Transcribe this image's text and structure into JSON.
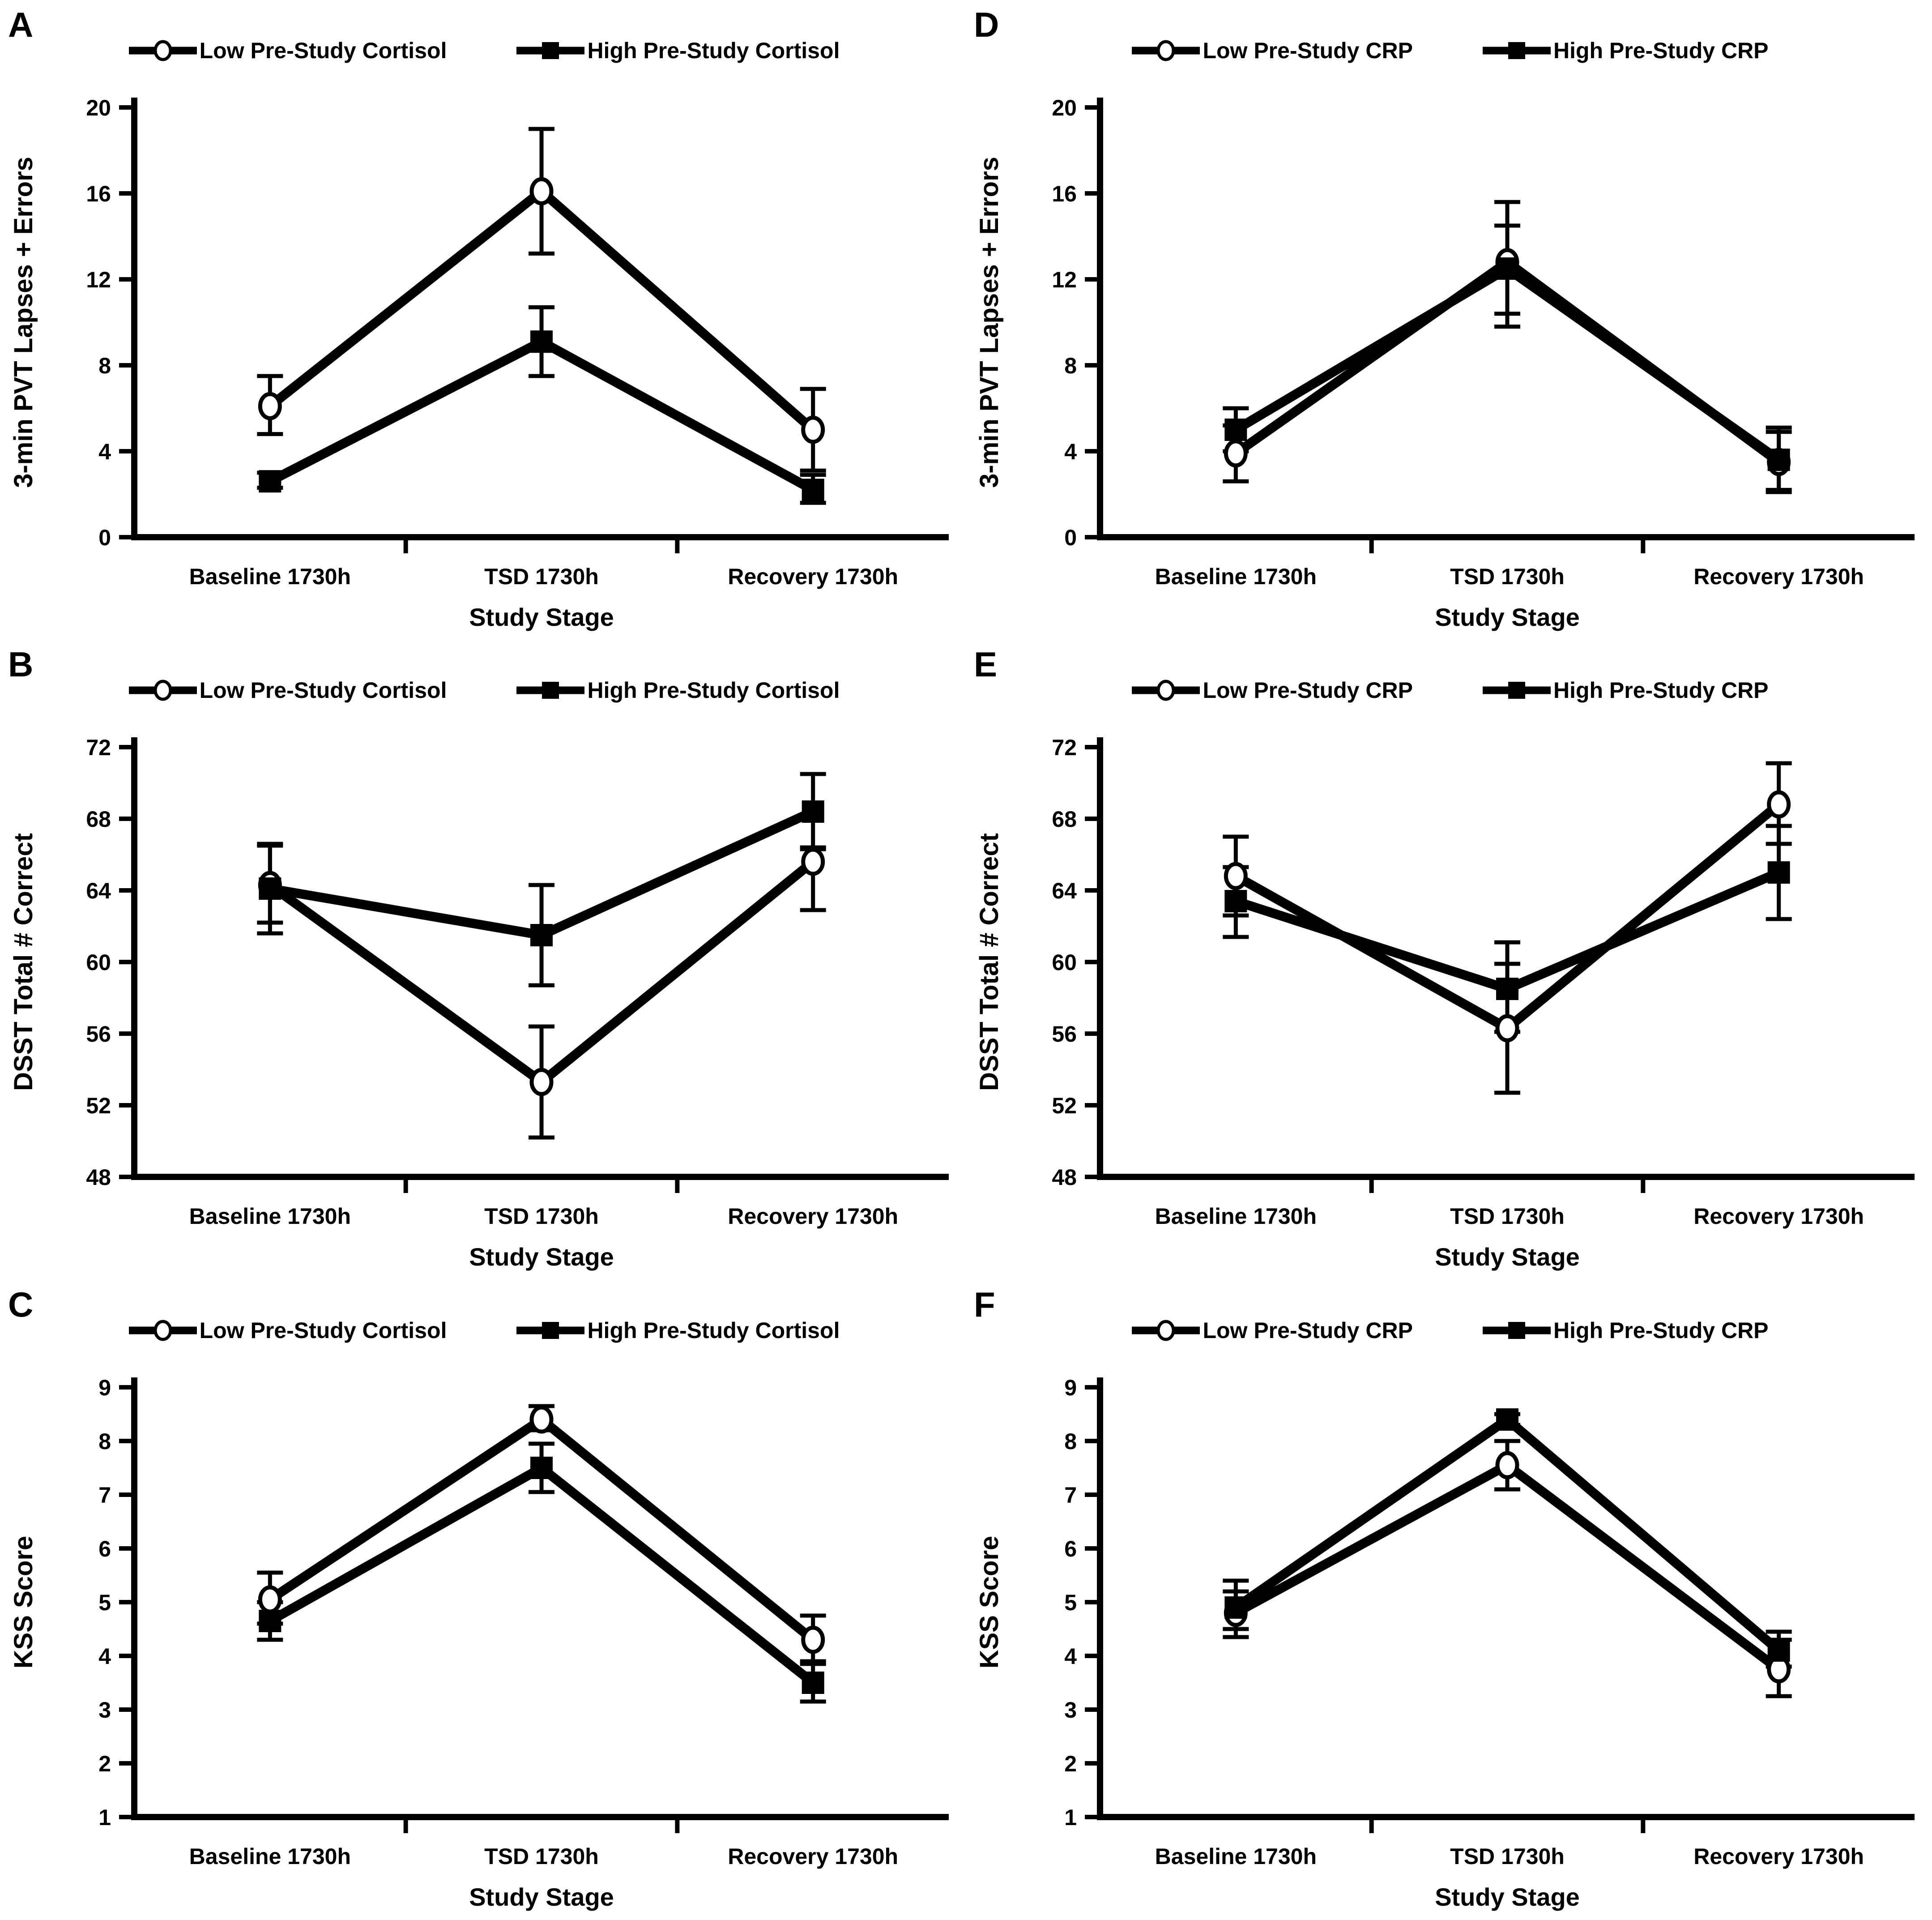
{
  "page": {
    "background": "#ffffff",
    "ink": "#000000"
  },
  "legend_marker_icons": {
    "low": "open-circle",
    "high": "filled-square"
  },
  "chart_data": [
    {
      "panel": "A",
      "type": "line",
      "categories": [
        "Baseline 1730h",
        "TSD 1730h",
        "Recovery 1730h"
      ],
      "xlabel": "Study Stage",
      "ylabel": "3-min PVT Lapses + Errors",
      "ylim": [
        0,
        20
      ],
      "yticks": [
        0,
        4,
        8,
        12,
        16,
        20
      ],
      "grid": false,
      "legend_position": "top",
      "series": [
        {
          "name": "Low Pre-Study Cortisol",
          "marker": "open-circle",
          "values": [
            6.1,
            16.1,
            5.0
          ],
          "err_low": [
            4.8,
            13.2,
            3.1
          ],
          "err_high": [
            7.5,
            19.0,
            6.9
          ]
        },
        {
          "name": "High Pre-Study Cortisol",
          "marker": "filled-square",
          "values": [
            2.6,
            9.1,
            2.2
          ],
          "err_low": [
            2.3,
            7.5,
            1.6
          ],
          "err_high": [
            3.0,
            10.7,
            2.9
          ]
        }
      ]
    },
    {
      "panel": "B",
      "type": "line",
      "categories": [
        "Baseline 1730h",
        "TSD 1730h",
        "Recovery 1730h"
      ],
      "xlabel": "Study Stage",
      "ylabel": "DSST Total # Correct",
      "ylim": [
        48,
        72
      ],
      "yticks": [
        48,
        52,
        56,
        60,
        64,
        68,
        72
      ],
      "grid": false,
      "legend_position": "top",
      "series": [
        {
          "name": "Low Pre-Study Cortisol",
          "marker": "open-circle",
          "values": [
            64.3,
            53.3,
            65.6
          ],
          "err_low": [
            61.6,
            50.2,
            62.9
          ],
          "err_high": [
            66.5,
            56.4,
            66.3
          ]
        },
        {
          "name": "High Pre-Study Cortisol",
          "marker": "filled-square",
          "values": [
            64.1,
            61.5,
            68.4
          ],
          "err_low": [
            62.2,
            58.7,
            66.4
          ],
          "err_high": [
            66.6,
            64.3,
            70.5
          ]
        }
      ]
    },
    {
      "panel": "C",
      "type": "line",
      "categories": [
        "Baseline 1730h",
        "TSD 1730h",
        "Recovery 1730h"
      ],
      "xlabel": "Study Stage",
      "ylabel": "KSS Score",
      "ylim": [
        1,
        9
      ],
      "yticks": [
        1,
        2,
        3,
        4,
        5,
        6,
        7,
        8,
        9
      ],
      "grid": false,
      "legend_position": "top",
      "series": [
        {
          "name": "Low Pre-Study Cortisol",
          "marker": "open-circle",
          "values": [
            5.05,
            8.4,
            4.3
          ],
          "err_low": [
            4.6,
            8.2,
            3.85
          ],
          "err_high": [
            5.55,
            8.65,
            4.75
          ]
        },
        {
          "name": "High Pre-Study Cortisol",
          "marker": "filled-square",
          "values": [
            4.65,
            7.5,
            3.5
          ],
          "err_low": [
            4.3,
            7.05,
            3.15
          ],
          "err_high": [
            5.0,
            7.95,
            3.9
          ]
        }
      ]
    },
    {
      "panel": "D",
      "type": "line",
      "categories": [
        "Baseline 1730h",
        "TSD 1730h",
        "Recovery 1730h"
      ],
      "xlabel": "Study Stage",
      "ylabel": "3-min PVT Lapses + Errors",
      "ylim": [
        0,
        20
      ],
      "yticks": [
        0,
        4,
        8,
        12,
        16,
        20
      ],
      "grid": false,
      "legend_position": "top",
      "series": [
        {
          "name": "Low Pre-Study CRP",
          "marker": "open-circle",
          "values": [
            3.9,
            12.8,
            3.5
          ],
          "err_low": [
            2.6,
            10.4,
            2.2
          ],
          "err_high": [
            5.2,
            14.5,
            4.9
          ]
        },
        {
          "name": "High Pre-Study CRP",
          "marker": "filled-square",
          "values": [
            5.0,
            12.5,
            3.6
          ],
          "err_low": [
            4.0,
            9.8,
            2.1
          ],
          "err_high": [
            6.0,
            15.6,
            5.1
          ]
        }
      ]
    },
    {
      "panel": "E",
      "type": "line",
      "categories": [
        "Baseline 1730h",
        "TSD 1730h",
        "Recovery 1730h"
      ],
      "xlabel": "Study Stage",
      "ylabel": "DSST Total # Correct",
      "ylim": [
        48,
        72
      ],
      "yticks": [
        48,
        52,
        56,
        60,
        64,
        68,
        72
      ],
      "grid": false,
      "legend_position": "top",
      "series": [
        {
          "name": "Low Pre-Study CRP",
          "marker": "open-circle",
          "values": [
            64.8,
            56.3,
            68.8
          ],
          "err_low": [
            62.6,
            52.7,
            66.6
          ],
          "err_high": [
            67.0,
            59.9,
            71.1
          ]
        },
        {
          "name": "High Pre-Study CRP",
          "marker": "filled-square",
          "values": [
            63.4,
            58.5,
            65.0
          ],
          "err_low": [
            61.4,
            56.1,
            62.4
          ],
          "err_high": [
            65.3,
            61.1,
            67.6
          ]
        }
      ]
    },
    {
      "panel": "F",
      "type": "line",
      "categories": [
        "Baseline 1730h",
        "TSD 1730h",
        "Recovery 1730h"
      ],
      "xlabel": "Study Stage",
      "ylabel": "KSS Score",
      "ylim": [
        1,
        9
      ],
      "yticks": [
        1,
        2,
        3,
        4,
        5,
        6,
        7,
        8,
        9
      ],
      "grid": false,
      "legend_position": "top",
      "series": [
        {
          "name": "Low Pre-Study CRP",
          "marker": "open-circle",
          "values": [
            4.8,
            7.55,
            3.75
          ],
          "err_low": [
            4.35,
            7.1,
            3.25
          ],
          "err_high": [
            5.2,
            8.0,
            4.3
          ]
        },
        {
          "name": "High Pre-Study CRP",
          "marker": "filled-square",
          "values": [
            4.9,
            8.4,
            4.1
          ],
          "err_low": [
            4.5,
            8.3,
            3.8
          ],
          "err_high": [
            5.4,
            8.5,
            4.45
          ]
        }
      ]
    }
  ]
}
